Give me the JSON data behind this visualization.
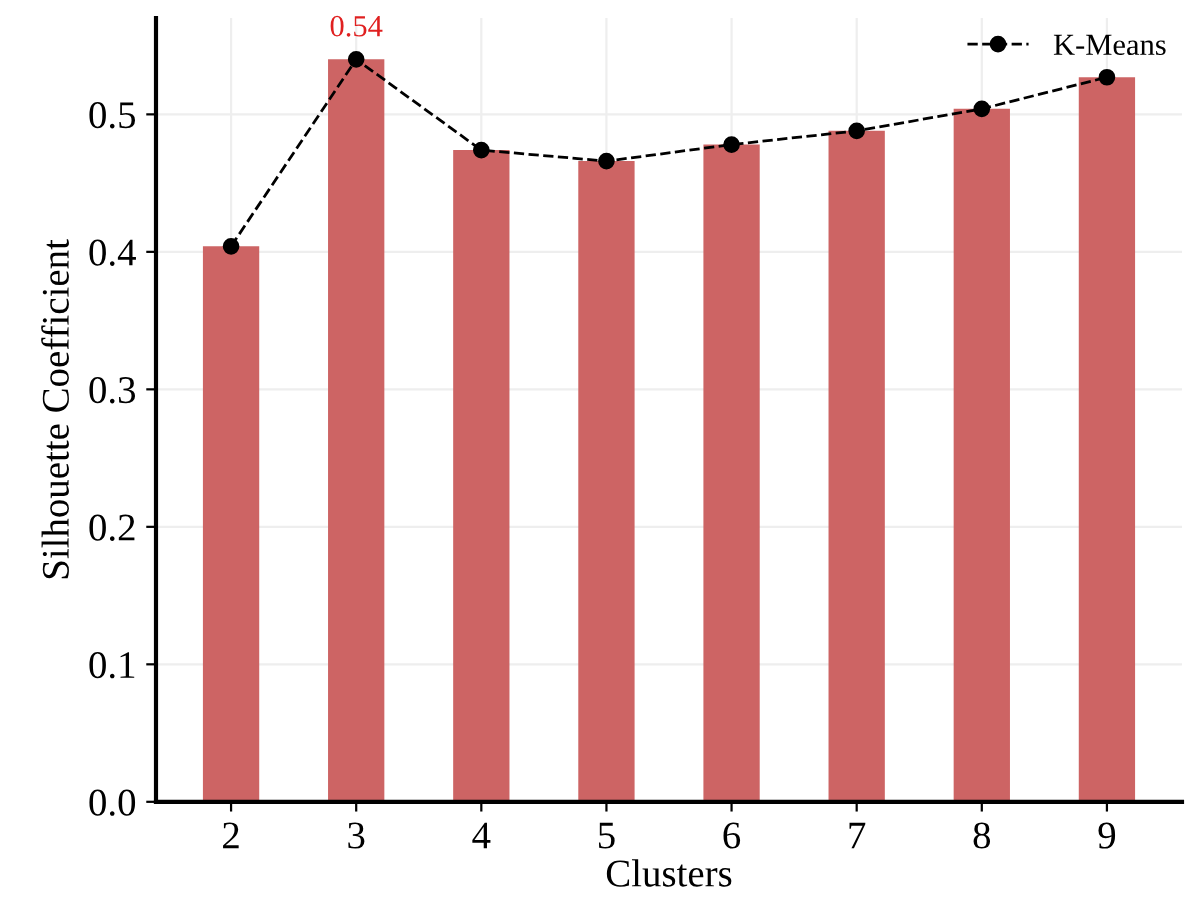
{
  "chart_data": {
    "type": "bar",
    "xlabel": "Clusters",
    "ylabel": "Silhouette Coefficient",
    "categories": [
      "2",
      "3",
      "4",
      "5",
      "6",
      "7",
      "8",
      "9"
    ],
    "series": [
      {
        "color": "#cd6464",
        "values": [
          0.404,
          0.54,
          0.474,
          0.466,
          0.478,
          0.488,
          0.504,
          0.527
        ],
        "value_labels": [
          null,
          "0.54",
          null,
          null,
          null,
          null,
          null,
          null
        ]
      },
      {
        "type": "line",
        "name": "K-Means",
        "color": "#000000",
        "marker": "circle",
        "line_style": "dashed",
        "values": [
          0.404,
          0.54,
          0.474,
          0.466,
          0.478,
          0.488,
          0.504,
          0.527
        ]
      }
    ],
    "ylim": [
      0,
      0.57
    ],
    "yticks": [
      {
        "value": 0,
        "label": "0.0"
      },
      0.1,
      0.2,
      0.3,
      0.4,
      0.5
    ],
    "grid": true,
    "legend": "top right"
  }
}
